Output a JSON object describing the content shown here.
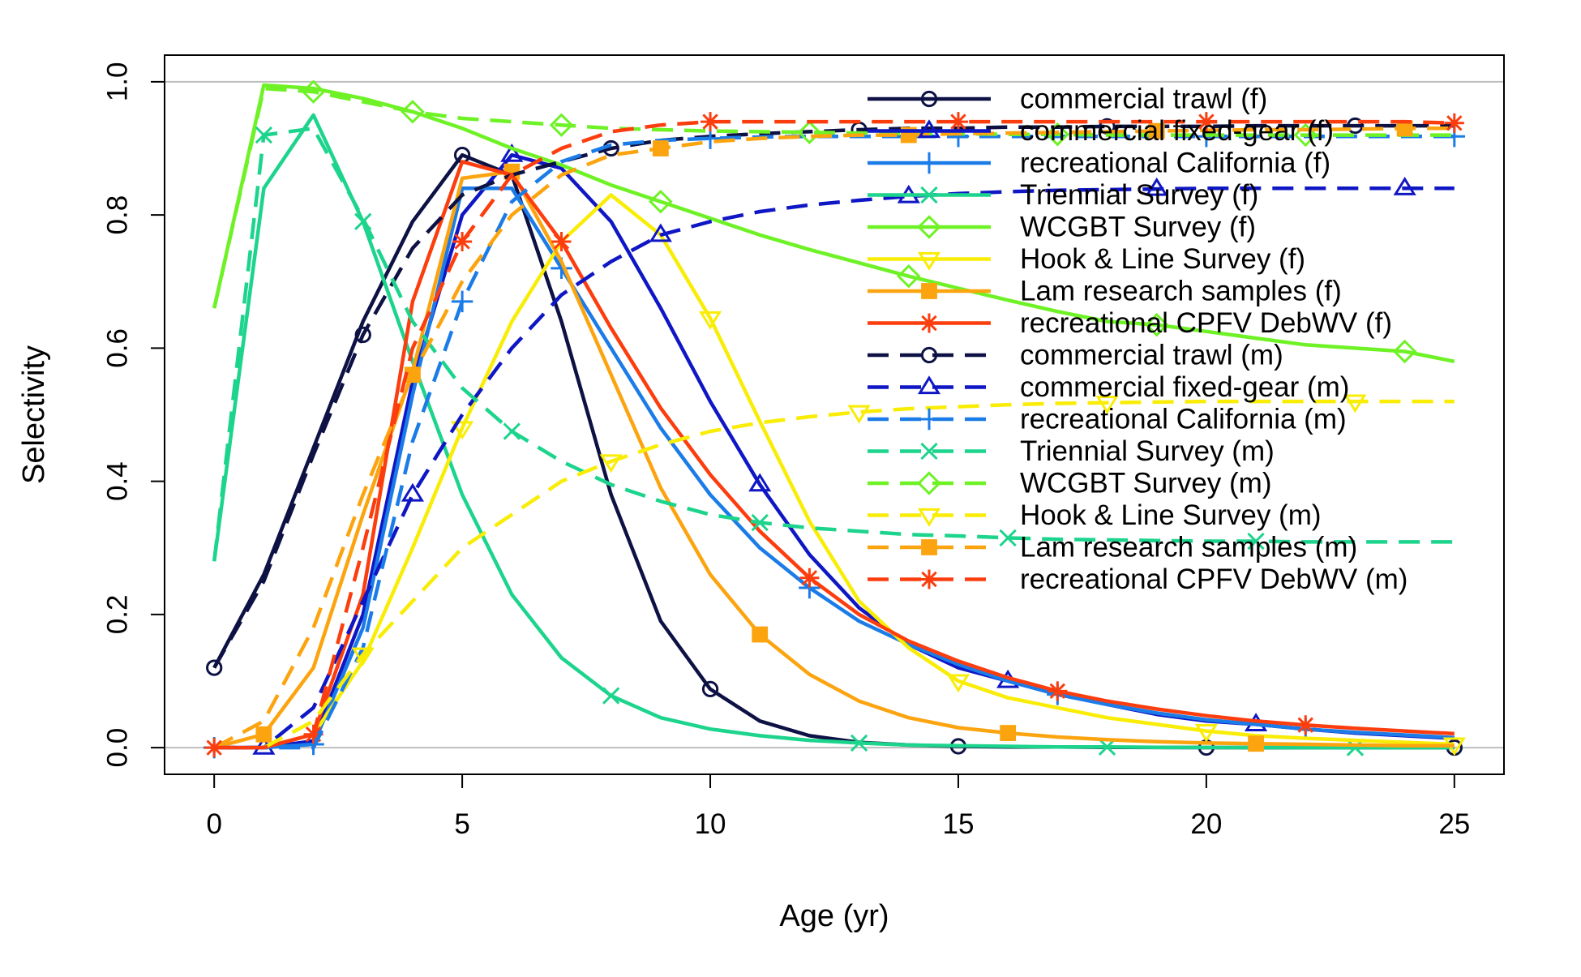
{
  "chart_data": {
    "type": "line",
    "title": "",
    "xlabel": "Age (yr)",
    "ylabel": "Selectivity",
    "xlim": [
      -1,
      26
    ],
    "ylim": [
      -0.04,
      1.04
    ],
    "x_ticks": [
      0,
      5,
      10,
      15,
      20,
      25
    ],
    "y_ticks": [
      0.0,
      0.2,
      0.4,
      0.6,
      0.8,
      1.0
    ],
    "x_tick_labels": [
      "0",
      "5",
      "10",
      "15",
      "20",
      "25"
    ],
    "y_tick_labels": [
      "0.0",
      "0.2",
      "0.4",
      "0.6",
      "0.8",
      "1.0"
    ],
    "reference_lines": [
      0,
      1
    ],
    "grid": false,
    "legend_position": "top-right",
    "series": [
      {
        "name": "commercial trawl (f)",
        "color": "#0d1144",
        "dash": "solid",
        "marker": "circle",
        "marker_every": 5,
        "marker_offset": 0,
        "x": [
          0,
          1,
          2,
          3,
          4,
          5,
          6,
          7,
          8,
          9,
          10,
          11,
          12,
          13,
          14,
          15,
          16,
          17,
          18,
          19,
          20,
          21,
          22,
          23,
          24,
          25
        ],
        "values": [
          0.12,
          0.26,
          0.45,
          0.64,
          0.79,
          0.89,
          0.86,
          0.64,
          0.38,
          0.19,
          0.088,
          0.04,
          0.018,
          0.008,
          0.004,
          0.002,
          0.001,
          0.001,
          0.0005,
          0.0003,
          0.0002,
          0.0001,
          0.0001,
          0.0001,
          0.0001,
          0.0001
        ]
      },
      {
        "name": "commercial fixed-gear (f)",
        "color": "#0f17c5",
        "dash": "solid",
        "marker": "triangle",
        "marker_every": 5,
        "marker_offset": 1,
        "x": [
          0,
          1,
          2,
          3,
          4,
          5,
          6,
          7,
          8,
          9,
          10,
          11,
          12,
          13,
          14,
          15,
          16,
          17,
          18,
          19,
          20,
          21,
          22,
          23,
          24,
          25
        ],
        "values": [
          0.0,
          0.0,
          0.01,
          0.2,
          0.55,
          0.8,
          0.89,
          0.87,
          0.79,
          0.66,
          0.52,
          0.395,
          0.29,
          0.21,
          0.155,
          0.12,
          0.1,
          0.08,
          0.065,
          0.05,
          0.04,
          0.035,
          0.028,
          0.022,
          0.018,
          0.014
        ]
      },
      {
        "name": "recreational California (f)",
        "color": "#1b7ce8",
        "dash": "solid",
        "marker": "plus",
        "marker_every": 5,
        "marker_offset": 2,
        "x": [
          0,
          1,
          2,
          3,
          4,
          5,
          6,
          7,
          8,
          9,
          10,
          11,
          12,
          13,
          14,
          15,
          16,
          17,
          18,
          19,
          20,
          21,
          22,
          23,
          24,
          25
        ],
        "values": [
          0.0,
          0.0,
          0.005,
          0.18,
          0.53,
          0.84,
          0.84,
          0.72,
          0.6,
          0.48,
          0.38,
          0.3,
          0.24,
          0.19,
          0.155,
          0.125,
          0.1,
          0.08,
          0.065,
          0.052,
          0.042,
          0.035,
          0.028,
          0.023,
          0.019,
          0.015
        ]
      },
      {
        "name": "Triennial Survey (f)",
        "color": "#1dd48d",
        "dash": "solid",
        "marker": "x",
        "marker_every": 5,
        "marker_offset": 3,
        "x": [
          0,
          1,
          2,
          3,
          4,
          5,
          6,
          7,
          8,
          9,
          10,
          11,
          12,
          13,
          14,
          15,
          16,
          17,
          18,
          19,
          20,
          21,
          22,
          23,
          24,
          25
        ],
        "values": [
          0.28,
          0.84,
          0.95,
          0.79,
          0.58,
          0.38,
          0.23,
          0.135,
          0.078,
          0.045,
          0.028,
          0.018,
          0.011,
          0.007,
          0.004,
          0.003,
          0.002,
          0.001,
          0.001,
          0.0005,
          0.0003,
          0.0002,
          0.0001,
          0.0001,
          0.0001,
          0.0001
        ]
      },
      {
        "name": "WCGBT Survey (f)",
        "color": "#6ef226",
        "dash": "solid",
        "marker": "diamond",
        "marker_every": 5,
        "marker_offset": 4,
        "x": [
          0,
          1,
          2,
          3,
          4,
          5,
          6,
          7,
          8,
          9,
          10,
          11,
          12,
          13,
          14,
          15,
          16,
          17,
          18,
          19,
          20,
          21,
          22,
          23,
          24,
          25
        ],
        "values": [
          0.66,
          0.995,
          0.99,
          0.975,
          0.955,
          0.93,
          0.9,
          0.875,
          0.845,
          0.82,
          0.795,
          0.77,
          0.748,
          0.728,
          0.708,
          0.69,
          0.672,
          0.655,
          0.64,
          0.635,
          0.625,
          0.615,
          0.605,
          0.6,
          0.595,
          0.58
        ]
      },
      {
        "name": "Hook & Line Survey (f)",
        "color": "#f9ec05",
        "dash": "solid",
        "marker": "nabla",
        "marker_every": 5,
        "marker_offset": 0,
        "x": [
          1,
          2,
          3,
          4,
          5,
          6,
          7,
          8,
          9,
          10,
          11,
          12,
          13,
          14,
          15,
          16,
          17,
          18,
          19,
          20,
          21,
          22,
          23,
          24,
          25
        ],
        "values": [
          0.0,
          0.02,
          0.13,
          0.3,
          0.48,
          0.64,
          0.76,
          0.83,
          0.77,
          0.645,
          0.49,
          0.34,
          0.22,
          0.15,
          0.1,
          0.075,
          0.06,
          0.045,
          0.035,
          0.025,
          0.018,
          0.014,
          0.011,
          0.008,
          0.005
        ]
      },
      {
        "name": "Lam research samples (f)",
        "color": "#fca40f",
        "dash": "solid",
        "marker": "square",
        "marker_every": 5,
        "marker_offset": 1,
        "x": [
          0,
          1,
          2,
          3,
          4,
          5,
          6,
          7,
          8,
          9,
          10,
          11,
          12,
          13,
          14,
          15,
          16,
          17,
          18,
          19,
          20,
          21,
          22,
          23,
          24,
          25
        ],
        "values": [
          0.0,
          0.02,
          0.12,
          0.35,
          0.565,
          0.855,
          0.865,
          0.73,
          0.56,
          0.39,
          0.26,
          0.17,
          0.11,
          0.07,
          0.045,
          0.03,
          0.022,
          0.016,
          0.012,
          0.009,
          0.007,
          0.006,
          0.005,
          0.004,
          0.003,
          0.003
        ]
      },
      {
        "name": "recreational CPFV DebWV (f)",
        "color": "#fc3d0e",
        "dash": "solid",
        "marker": "asterisk",
        "marker_every": 5,
        "marker_offset": 2,
        "x": [
          0,
          1,
          2,
          3,
          4,
          5,
          6,
          7,
          8,
          9,
          10,
          11,
          12,
          13,
          14,
          15,
          16,
          17,
          18,
          19,
          20,
          21,
          22,
          23,
          24,
          25
        ],
        "values": [
          0.0,
          0.0,
          0.02,
          0.23,
          0.67,
          0.88,
          0.86,
          0.76,
          0.63,
          0.51,
          0.41,
          0.325,
          0.255,
          0.2,
          0.16,
          0.13,
          0.105,
          0.085,
          0.07,
          0.058,
          0.048,
          0.04,
          0.034,
          0.029,
          0.025,
          0.021
        ]
      },
      {
        "name": "commercial trawl (m)",
        "color": "#0d1144",
        "dash": "dashed",
        "marker": "circle",
        "marker_every": 5,
        "marker_offset": 3,
        "x": [
          0,
          1,
          2,
          3,
          4,
          5,
          6,
          7,
          8,
          9,
          10,
          11,
          12,
          13,
          14,
          15,
          16,
          17,
          18,
          19,
          20,
          21,
          22,
          23,
          24,
          25
        ],
        "values": [
          0.12,
          0.25,
          0.44,
          0.62,
          0.75,
          0.83,
          0.86,
          0.88,
          0.9,
          0.912,
          0.918,
          0.922,
          0.925,
          0.928,
          0.93,
          0.93,
          0.932,
          0.932,
          0.933,
          0.933,
          0.933,
          0.934,
          0.934,
          0.934,
          0.934,
          0.934
        ]
      },
      {
        "name": "commercial fixed-gear (m)",
        "color": "#0f17c5",
        "dash": "dashed",
        "marker": "triangle",
        "marker_every": 5,
        "marker_offset": 4,
        "x": [
          0,
          1,
          2,
          3,
          4,
          5,
          6,
          7,
          8,
          9,
          10,
          11,
          12,
          13,
          14,
          15,
          16,
          17,
          18,
          19,
          20,
          21,
          22,
          23,
          24,
          25
        ],
        "values": [
          0.0,
          0.0,
          0.06,
          0.22,
          0.38,
          0.5,
          0.6,
          0.68,
          0.73,
          0.77,
          0.79,
          0.805,
          0.815,
          0.822,
          0.828,
          0.832,
          0.835,
          0.837,
          0.838,
          0.839,
          0.84,
          0.84,
          0.84,
          0.84,
          0.84,
          0.84
        ]
      },
      {
        "name": "recreational California (m)",
        "color": "#1b7ce8",
        "dash": "dashed",
        "marker": "plus",
        "marker_every": 5,
        "marker_offset": 0,
        "x": [
          0,
          1,
          2,
          3,
          4,
          5,
          6,
          7,
          8,
          9,
          10,
          11,
          12,
          13,
          14,
          15,
          16,
          17,
          18,
          19,
          20,
          21,
          22,
          23,
          24,
          25
        ],
        "values": [
          0.0,
          0.0,
          0.0,
          0.15,
          0.46,
          0.67,
          0.82,
          0.88,
          0.905,
          0.912,
          0.915,
          0.917,
          0.918,
          0.918,
          0.918,
          0.918,
          0.918,
          0.918,
          0.918,
          0.918,
          0.918,
          0.918,
          0.918,
          0.918,
          0.918,
          0.918
        ]
      },
      {
        "name": "Triennial Survey (m)",
        "color": "#1dd48d",
        "dash": "dashed",
        "marker": "x",
        "marker_every": 5,
        "marker_offset": 1,
        "x": [
          0,
          1,
          2,
          3,
          4,
          5,
          6,
          7,
          8,
          9,
          10,
          11,
          12,
          13,
          14,
          15,
          16,
          17,
          18,
          19,
          20,
          21,
          22,
          23,
          24,
          25
        ],
        "values": [
          0.28,
          0.92,
          0.93,
          0.795,
          0.64,
          0.54,
          0.475,
          0.43,
          0.395,
          0.37,
          0.35,
          0.338,
          0.33,
          0.325,
          0.32,
          0.318,
          0.315,
          0.313,
          0.312,
          0.311,
          0.31,
          0.31,
          0.309,
          0.309,
          0.309,
          0.309
        ]
      },
      {
        "name": "WCGBT Survey (m)",
        "color": "#6ef226",
        "dash": "dashed",
        "marker": "diamond",
        "marker_every": 5,
        "marker_offset": 2,
        "x": [
          0,
          1,
          2,
          3,
          4,
          5,
          6,
          7,
          8,
          9,
          10,
          11,
          12,
          13,
          14,
          15,
          16,
          17,
          18,
          19,
          20,
          21,
          22,
          23,
          24,
          25
        ],
        "values": [
          0.66,
          0.99,
          0.985,
          0.97,
          0.955,
          0.945,
          0.94,
          0.935,
          0.93,
          0.928,
          0.926,
          0.925,
          0.924,
          0.923,
          0.922,
          0.922,
          0.921,
          0.921,
          0.92,
          0.92,
          0.92,
          0.92,
          0.92,
          0.92,
          0.92,
          0.92
        ]
      },
      {
        "name": "Hook & Line Survey (m)",
        "color": "#f9ec05",
        "dash": "dashed",
        "marker": "nabla",
        "marker_every": 5,
        "marker_offset": 3,
        "x": [
          1,
          2,
          3,
          4,
          5,
          6,
          7,
          8,
          9,
          10,
          11,
          12,
          13,
          14,
          15,
          16,
          17,
          18,
          19,
          20,
          21,
          22,
          23,
          24,
          25
        ],
        "values": [
          0.0,
          0.04,
          0.14,
          0.22,
          0.3,
          0.35,
          0.4,
          0.43,
          0.455,
          0.475,
          0.488,
          0.497,
          0.504,
          0.509,
          0.512,
          0.515,
          0.517,
          0.518,
          0.519,
          0.52,
          0.52,
          0.52,
          0.52,
          0.52,
          0.52
        ]
      },
      {
        "name": "Lam research samples (m)",
        "color": "#fca40f",
        "dash": "dashed",
        "marker": "square",
        "marker_every": 5,
        "marker_offset": 4,
        "x": [
          0,
          1,
          2,
          3,
          4,
          5,
          6,
          7,
          8,
          9,
          10,
          11,
          12,
          13,
          14,
          15,
          16,
          17,
          18,
          19,
          20,
          21,
          22,
          23,
          24,
          25
        ],
        "values": [
          0.0,
          0.04,
          0.18,
          0.38,
          0.56,
          0.7,
          0.8,
          0.86,
          0.89,
          0.9,
          0.91,
          0.915,
          0.918,
          0.92,
          0.92,
          0.922,
          0.923,
          0.924,
          0.925,
          0.926,
          0.927,
          0.928,
          0.928,
          0.929,
          0.93,
          0.93
        ]
      },
      {
        "name": "recreational CPFV DebWV (m)",
        "color": "#fc3d0e",
        "dash": "dashed",
        "marker": "asterisk",
        "marker_every": 5,
        "marker_offset": 0,
        "x": [
          0,
          1,
          2,
          3,
          4,
          5,
          6,
          7,
          8,
          9,
          10,
          11,
          12,
          13,
          14,
          15,
          16,
          17,
          18,
          19,
          20,
          21,
          22,
          23,
          24,
          25
        ],
        "values": [
          0.0,
          0.0,
          0.02,
          0.3,
          0.6,
          0.76,
          0.86,
          0.9,
          0.925,
          0.935,
          0.94,
          0.94,
          0.94,
          0.94,
          0.94,
          0.94,
          0.94,
          0.94,
          0.94,
          0.94,
          0.94,
          0.94,
          0.94,
          0.94,
          0.94,
          0.938
        ]
      }
    ]
  }
}
